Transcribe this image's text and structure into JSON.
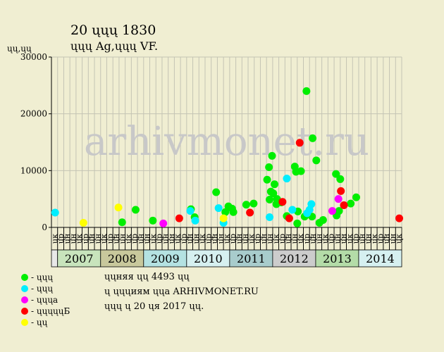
{
  "header": {
    "title": "20 ųųų 1830",
    "subtitle": "ųųų Ag,ųųų VF.",
    "y_unit": "ųų,ųų"
  },
  "watermark": "arhivmonet.ru",
  "colors": {
    "background": "#f0eed2",
    "plot_bg": "#f0eed2",
    "grid": "#c4c4b4",
    "watermark": "#c8c8c8",
    "green": "#00ee00",
    "cyan": "#00eeff",
    "magenta": "#ff00ff",
    "red": "#ff0000",
    "yellow": "#ffff00",
    "year_colors": [
      "#c8e4bc",
      "#c8c89c",
      "#b4e2e2",
      "#d6f0f0",
      "#a8cccc",
      "#cccccc",
      "#b4dca8",
      "#d6f0f0"
    ]
  },
  "legend": [
    {
      "label": "- ųųų",
      "color": "#00ee00"
    },
    {
      "label": "- ųųų",
      "color": "#00eeff"
    },
    {
      "label": "- ųųųa",
      "color": "#ff00ff"
    },
    {
      "label": "- ųųųųųБ",
      "color": "#ff0000"
    },
    {
      "label": "- ųų",
      "color": "#ffff00"
    }
  ],
  "info": [
    "ųųняя ųų 4493 ųų",
    "ų ųųųиям ųųa ARHIVMONET.RU",
    "ųųų ų 20 ųя 2017 ųų."
  ],
  "chart_data": {
    "type": "scatter",
    "ylim": [
      0,
      30000
    ],
    "yticks": [
      0,
      10000,
      20000,
      30000
    ],
    "grid": true,
    "quarter_labels": [
      "ųр",
      "ųн",
      "ųн",
      "ųк"
    ],
    "years": [
      "2007",
      "2008",
      "2009",
      "2010",
      "2011",
      "2012",
      "2013",
      "2014"
    ],
    "series": [
      {
        "color": "green",
        "points": [
          [
            11.5,
            900
          ],
          [
            13.7,
            3100
          ],
          [
            16.5,
            1200
          ],
          [
            22.7,
            3200
          ],
          [
            23.3,
            1800
          ],
          [
            26.8,
            6200
          ],
          [
            28.3,
            2700
          ],
          [
            28.8,
            3700
          ],
          [
            29.4,
            3300
          ],
          [
            29.6,
            2700
          ],
          [
            31.7,
            4000
          ],
          [
            32.9,
            4200
          ],
          [
            35.1,
            8400
          ],
          [
            35.4,
            10600
          ],
          [
            35.5,
            4900
          ],
          [
            35.7,
            6300
          ],
          [
            35.9,
            12600
          ],
          [
            36.1,
            6000
          ],
          [
            36.3,
            7600
          ],
          [
            36.7,
            5000
          ],
          [
            36.6,
            4100
          ],
          [
            37.4,
            4400
          ],
          [
            38.3,
            2000
          ],
          [
            39.6,
            10700
          ],
          [
            39.8,
            9800
          ],
          [
            40.0,
            700
          ],
          [
            40.1,
            2800
          ],
          [
            40.6,
            9900
          ],
          [
            41.2,
            1900
          ],
          [
            41.5,
            24000
          ],
          [
            42.4,
            1900
          ],
          [
            42.5,
            15700
          ],
          [
            43.1,
            11800
          ],
          [
            43.6,
            800
          ],
          [
            44.2,
            1300
          ],
          [
            46.3,
            9400
          ],
          [
            46.4,
            2100
          ],
          [
            46.8,
            2900
          ],
          [
            47.0,
            8500
          ],
          [
            48.7,
            4200
          ],
          [
            49.6,
            5300
          ]
        ]
      },
      {
        "color": "cyan",
        "points": [
          [
            0.6,
            2600
          ],
          [
            22.6,
            2900
          ],
          [
            23.4,
            1200
          ],
          [
            27.2,
            3400
          ],
          [
            28.0,
            800
          ],
          [
            35.5,
            1800
          ],
          [
            38.3,
            8600
          ],
          [
            39.2,
            3100
          ],
          [
            41.6,
            2500
          ],
          [
            42.0,
            3100
          ],
          [
            42.3,
            4100
          ]
        ]
      },
      {
        "color": "magenta",
        "points": [
          [
            18.2,
            700
          ],
          [
            45.7,
            2900
          ],
          [
            46.7,
            5000
          ]
        ]
      },
      {
        "color": "red",
        "points": [
          [
            20.8,
            1600
          ],
          [
            32.3,
            2600
          ],
          [
            37.6,
            4500
          ],
          [
            38.7,
            1600
          ],
          [
            40.4,
            14900
          ],
          [
            47.1,
            6400
          ],
          [
            47.6,
            3900
          ],
          [
            56.6,
            1600
          ]
        ]
      },
      {
        "color": "yellow",
        "points": [
          [
            5.2,
            800
          ],
          [
            10.9,
            3500
          ],
          [
            28.0,
            1600
          ]
        ]
      }
    ]
  }
}
